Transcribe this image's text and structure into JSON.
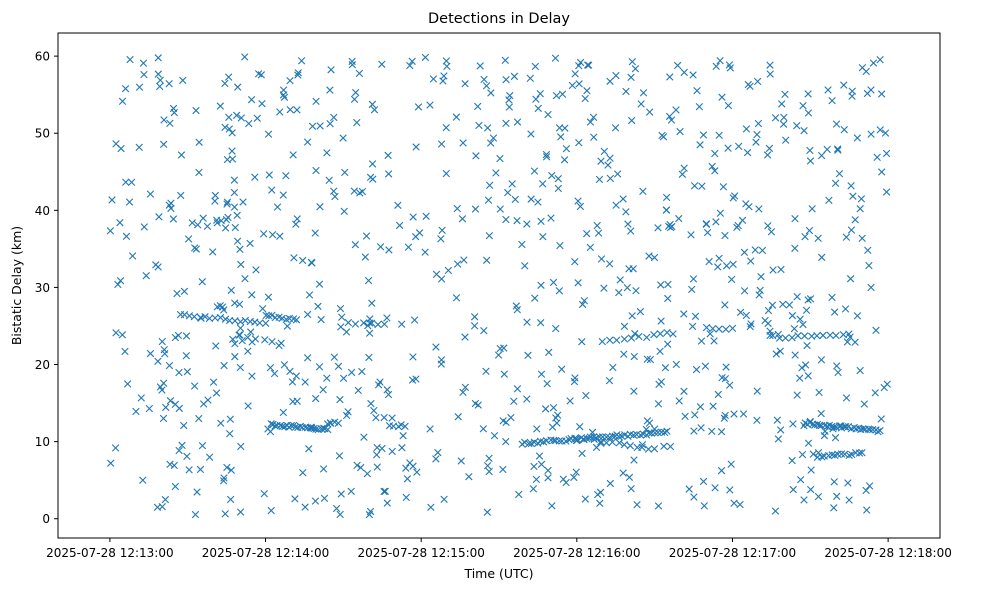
{
  "chart_data": {
    "type": "scatter",
    "title": "Detections in Delay",
    "xlabel": "Time (UTC)",
    "ylabel": "Bistatic Delay (km)",
    "marker": "x",
    "color": "#1f77b4",
    "x_unit": "seconds after 2025-07-28 12:13:00",
    "xlim": [
      -20,
      320
    ],
    "ylim": [
      -2.5,
      63
    ],
    "xticks": [
      {
        "value": 0,
        "label": "2025-07-28 12:13:00"
      },
      {
        "value": 60,
        "label": "2025-07-28 12:14:00"
      },
      {
        "value": 120,
        "label": "2025-07-28 12:15:00"
      },
      {
        "value": 180,
        "label": "2025-07-28 12:16:00"
      },
      {
        "value": 240,
        "label": "2025-07-28 12:17:00"
      },
      {
        "value": 300,
        "label": "2025-07-28 12:18:00"
      }
    ],
    "yticks": [
      0,
      10,
      20,
      30,
      40,
      50,
      60
    ],
    "tracks": [
      {
        "t_start": 62,
        "t_end": 84,
        "delay_start": 12.2,
        "delay_end": 11.6,
        "count": 26
      },
      {
        "t_start": 84,
        "t_end": 88,
        "delay_start": 12.3,
        "delay_end": 12.5,
        "count": 4
      },
      {
        "t_start": 27,
        "t_end": 60,
        "delay_start": 26.5,
        "delay_end": 25.3,
        "count": 18
      },
      {
        "t_start": 60,
        "t_end": 72,
        "delay_start": 26.4,
        "delay_end": 25.8,
        "count": 10
      },
      {
        "t_start": 50,
        "t_end": 66,
        "delay_start": 23.8,
        "delay_end": 22.8,
        "count": 6
      },
      {
        "t_start": 159,
        "t_end": 215,
        "delay_start": 9.8,
        "delay_end": 11.2,
        "count": 48
      },
      {
        "t_start": 180,
        "t_end": 210,
        "delay_start": 10.5,
        "delay_end": 9.0,
        "count": 14
      },
      {
        "t_start": 190,
        "t_end": 215,
        "delay_start": 23.0,
        "delay_end": 24.0,
        "count": 10
      },
      {
        "t_start": 268,
        "t_end": 297,
        "delay_start": 12.4,
        "delay_end": 11.4,
        "count": 32
      },
      {
        "t_start": 258,
        "t_end": 285,
        "delay_start": 23.5,
        "delay_end": 24.0,
        "count": 12
      },
      {
        "t_start": 273,
        "t_end": 290,
        "delay_start": 8.0,
        "delay_end": 8.5,
        "count": 14
      },
      {
        "t_start": 230,
        "t_end": 240,
        "delay_start": 24.7,
        "delay_end": 24.7,
        "count": 5
      },
      {
        "t_start": 92,
        "t_end": 106,
        "delay_start": 25.4,
        "delay_end": 25.2,
        "count": 6
      },
      {
        "t_start": 108,
        "t_end": 114,
        "delay_start": 12.0,
        "delay_end": 12.1,
        "count": 5
      }
    ],
    "clutter": {
      "count": 900,
      "t_range": [
        0,
        300
      ],
      "delay_range": [
        0.5,
        60
      ],
      "seed": 20250728
    }
  }
}
